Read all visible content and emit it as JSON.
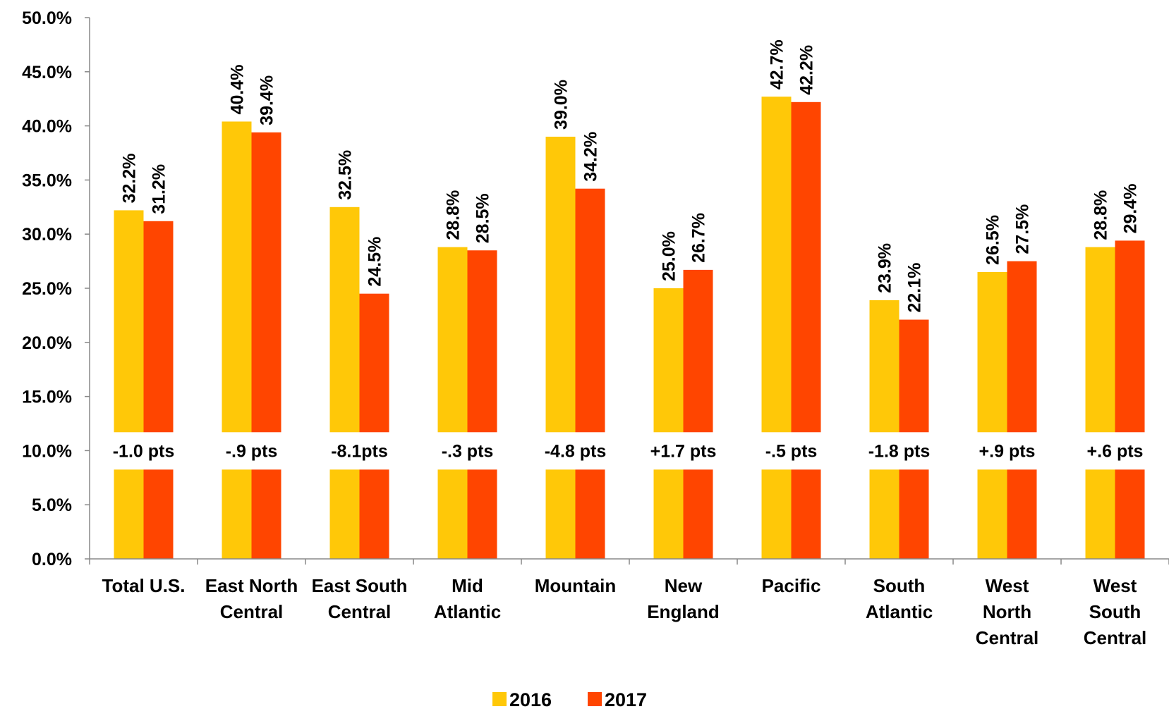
{
  "chart_data": {
    "type": "bar",
    "categories": [
      [
        "Total U.S."
      ],
      [
        "East North",
        "Central"
      ],
      [
        "East South",
        "Central"
      ],
      [
        "Mid",
        "Atlantic"
      ],
      [
        "Mountain"
      ],
      [
        "New",
        "England"
      ],
      [
        "Pacific"
      ],
      [
        "South",
        "Atlantic"
      ],
      [
        "West",
        "North",
        "Central"
      ],
      [
        "West",
        "South",
        "Central"
      ]
    ],
    "series": [
      {
        "name": "2016",
        "color": "#FFC808",
        "values": [
          32.2,
          40.4,
          32.5,
          28.8,
          39.0,
          25.0,
          42.7,
          23.9,
          26.5,
          28.8
        ],
        "labels": [
          "32.2%",
          "40.4%",
          "32.5%",
          "28.8%",
          "39.0%",
          "25.0%",
          "42.7%",
          "23.9%",
          "26.5%",
          "28.8%"
        ]
      },
      {
        "name": "2017",
        "color": "#FF4500",
        "values": [
          31.2,
          39.4,
          24.5,
          28.5,
          34.2,
          26.7,
          42.2,
          22.1,
          27.5,
          29.4
        ],
        "labels": [
          "31.2%",
          "39.4%",
          "24.5%",
          "28.5%",
          "34.2%",
          "26.7%",
          "42.2%",
          "22.1%",
          "27.5%",
          "29.4%"
        ]
      }
    ],
    "change_labels": [
      "-1.0 pts",
      "-.9 pts",
      "-8.1pts",
      "-.3 pts",
      "-4.8 pts",
      "+1.7 pts",
      "-.5 pts",
      "-1.8 pts",
      "+.9 pts",
      "+.6 pts"
    ],
    "yticks": [
      "0.0%",
      "5.0%",
      "10.0%",
      "15.0%",
      "20.0%",
      "25.0%",
      "30.0%",
      "35.0%",
      "40.0%",
      "45.0%",
      "50.0%"
    ],
    "ylim": [
      0,
      50
    ],
    "grid": false,
    "legend_position": "bottom"
  }
}
